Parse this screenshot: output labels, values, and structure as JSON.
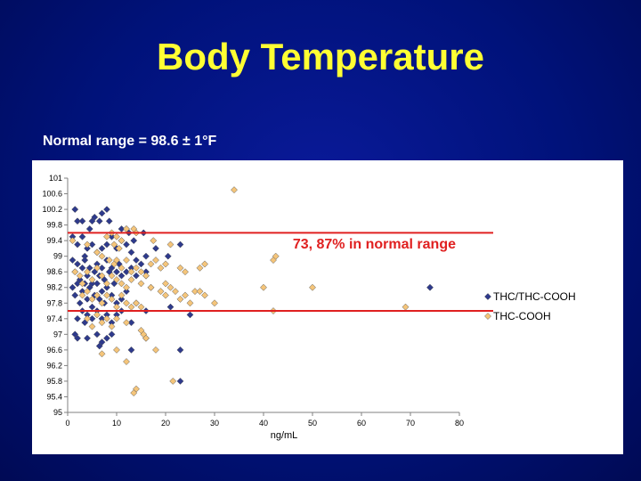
{
  "slide": {
    "title": "Body Temperature",
    "subtitle": "Normal range = 98.6 ± 1°F"
  },
  "colors": {
    "background": "#00127a",
    "title": "#ffff33",
    "series_thc_thccooh": "#2e3a8c",
    "series_thc_cooh": "#f5c57a",
    "normal_range_lines": "#e02020"
  },
  "chart_data": {
    "type": "scatter",
    "title": "",
    "xlabel": "ng/mL",
    "ylabel": "",
    "xlim": [
      0,
      80
    ],
    "ylim": [
      95,
      101
    ],
    "x_ticks": [
      "0",
      "10",
      "20",
      "30",
      "40",
      "50",
      "60",
      "70",
      "80"
    ],
    "y_ticks": [
      "95",
      "95.4",
      "95.8",
      "96.2",
      "96.6",
      "97",
      "97.4",
      "97.8",
      "98.2",
      "98.6",
      "99",
      "99.4",
      "99.8",
      "100.2",
      "100.6",
      "101"
    ],
    "grid": false,
    "legend_position": "right",
    "annotation": "73, 87% in normal range",
    "reference_lines": [
      {
        "y": 97.6,
        "label": ""
      },
      {
        "y": 99.6,
        "label": ""
      }
    ],
    "series": [
      {
        "name": "THC/THC-COOH",
        "marker": "diamond",
        "color": "#2e3a8c",
        "points": [
          [
            1.5,
            100.2
          ],
          [
            2,
            99.9
          ],
          [
            3,
            99.9
          ],
          [
            4.5,
            99.7
          ],
          [
            5,
            99.9
          ],
          [
            5.5,
            100
          ],
          [
            6.5,
            99.9
          ],
          [
            7,
            100.1
          ],
          [
            8,
            100.2
          ],
          [
            8.5,
            99.9
          ],
          [
            11,
            99.7
          ],
          [
            12,
            99.7
          ],
          [
            12.5,
            99.6
          ],
          [
            13.5,
            99.4
          ],
          [
            15.5,
            99.6
          ],
          [
            18,
            99.2
          ],
          [
            20.5,
            99
          ],
          [
            23,
            99.3
          ],
          [
            1,
            99.5
          ],
          [
            2,
            99.3
          ],
          [
            3,
            99.5
          ],
          [
            3.5,
            99
          ],
          [
            4,
            99.2
          ],
          [
            5,
            99.3
          ],
          [
            6,
            99.1
          ],
          [
            7,
            99.2
          ],
          [
            8,
            99.3
          ],
          [
            9,
            99.5
          ],
          [
            10,
            99.2
          ],
          [
            11,
            99.4
          ],
          [
            12,
            99.3
          ],
          [
            13,
            99.1
          ],
          [
            14,
            98.9
          ],
          [
            15,
            98.8
          ],
          [
            16,
            99
          ],
          [
            1,
            98.9
          ],
          [
            1.5,
            98.6
          ],
          [
            2,
            98.8
          ],
          [
            2.5,
            98.4
          ],
          [
            3,
            98.7
          ],
          [
            3.5,
            98.9
          ],
          [
            4,
            98.5
          ],
          [
            4.5,
            98.7
          ],
          [
            5,
            98.3
          ],
          [
            5.5,
            98.6
          ],
          [
            6,
            98.8
          ],
          [
            6.5,
            98.5
          ],
          [
            7,
            98.7
          ],
          [
            7.5,
            98.4
          ],
          [
            8,
            98.9
          ],
          [
            8.5,
            98.6
          ],
          [
            9,
            98.7
          ],
          [
            9.5,
            98.3
          ],
          [
            10,
            98.6
          ],
          [
            10.5,
            98.8
          ],
          [
            11,
            98.5
          ],
          [
            12,
            98.6
          ],
          [
            13,
            98.7
          ],
          [
            14,
            98.5
          ],
          [
            16,
            98.6
          ],
          [
            17,
            98.2
          ],
          [
            1,
            98.2
          ],
          [
            1.5,
            98
          ],
          [
            2,
            98.3
          ],
          [
            2.5,
            97.8
          ],
          [
            3,
            98.1
          ],
          [
            3.5,
            98.3
          ],
          [
            4,
            97.9
          ],
          [
            4.5,
            98.2
          ],
          [
            5,
            97.7
          ],
          [
            5.5,
            98
          ],
          [
            6,
            98.3
          ],
          [
            6.5,
            97.9
          ],
          [
            7,
            98.1
          ],
          [
            7.5,
            97.8
          ],
          [
            8,
            98.2
          ],
          [
            9,
            98
          ],
          [
            10,
            97.8
          ],
          [
            11,
            97.9
          ],
          [
            12,
            98.1
          ],
          [
            14,
            97.8
          ],
          [
            16,
            97.6
          ],
          [
            21,
            97.7
          ],
          [
            2,
            97.4
          ],
          [
            3,
            97.6
          ],
          [
            3.5,
            97.3
          ],
          [
            4,
            97.5
          ],
          [
            5,
            97.4
          ],
          [
            6,
            97.6
          ],
          [
            7,
            97.4
          ],
          [
            8,
            97.5
          ],
          [
            9,
            97.3
          ],
          [
            10,
            97.5
          ],
          [
            11,
            97.6
          ],
          [
            13,
            97.3
          ],
          [
            25,
            97.5
          ],
          [
            74,
            98.2
          ],
          [
            1.5,
            97
          ],
          [
            2,
            96.9
          ],
          [
            4,
            96.9
          ],
          [
            6,
            97
          ],
          [
            6.5,
            96.7
          ],
          [
            7,
            96.8
          ],
          [
            8,
            96.9
          ],
          [
            9,
            97
          ],
          [
            13,
            96.6
          ],
          [
            16,
            96.9
          ],
          [
            23,
            96.6
          ],
          [
            23,
            95.8
          ]
        ]
      },
      {
        "name": "THC-COOH",
        "marker": "diamond",
        "color": "#f5c57a",
        "points": [
          [
            34,
            100.7
          ],
          [
            12,
            99.7
          ],
          [
            13.5,
            99.7
          ],
          [
            14,
            99.6
          ],
          [
            9,
            99.6
          ],
          [
            10,
            99.5
          ],
          [
            11,
            99.4
          ],
          [
            9.5,
            99.3
          ],
          [
            10.5,
            99.2
          ],
          [
            8,
            99.5
          ],
          [
            17.5,
            99.4
          ],
          [
            21,
            99.3
          ],
          [
            1,
            99.4
          ],
          [
            4,
            99.3
          ],
          [
            6,
            99.1
          ],
          [
            7,
            99
          ],
          [
            8.5,
            98.9
          ],
          [
            9.5,
            98.8
          ],
          [
            10,
            98.9
          ],
          [
            11,
            98.7
          ],
          [
            12,
            98.9
          ],
          [
            13,
            98.6
          ],
          [
            14,
            98.7
          ],
          [
            15,
            98.6
          ],
          [
            16,
            98.5
          ],
          [
            17,
            98.8
          ],
          [
            18,
            98.9
          ],
          [
            19,
            98.7
          ],
          [
            20,
            98.8
          ],
          [
            23,
            98.7
          ],
          [
            24,
            98.6
          ],
          [
            28,
            98.8
          ],
          [
            27,
            98.7
          ],
          [
            42,
            98.9
          ],
          [
            42.5,
            99
          ],
          [
            1.5,
            98.6
          ],
          [
            2.5,
            98.5
          ],
          [
            3,
            98.3
          ],
          [
            4,
            98.6
          ],
          [
            5,
            98.4
          ],
          [
            6,
            98.7
          ],
          [
            7,
            98.5
          ],
          [
            8,
            98.3
          ],
          [
            9,
            98.5
          ],
          [
            10,
            98.4
          ],
          [
            11,
            98.3
          ],
          [
            12,
            98.2
          ],
          [
            13,
            98.4
          ],
          [
            15,
            98.3
          ],
          [
            16,
            98.5
          ],
          [
            17,
            98.2
          ],
          [
            20,
            98.3
          ],
          [
            21,
            98.2
          ],
          [
            3,
            98
          ],
          [
            4,
            98.1
          ],
          [
            5,
            97.9
          ],
          [
            6,
            98
          ],
          [
            7,
            97.8
          ],
          [
            8,
            98
          ],
          [
            9,
            97.9
          ],
          [
            10,
            97.7
          ],
          [
            11,
            98
          ],
          [
            12,
            97.8
          ],
          [
            13,
            97.7
          ],
          [
            14,
            97.8
          ],
          [
            15,
            97.7
          ],
          [
            19,
            98.1
          ],
          [
            20,
            98
          ],
          [
            22,
            98.1
          ],
          [
            23,
            97.9
          ],
          [
            24,
            98
          ],
          [
            25,
            97.8
          ],
          [
            26,
            98.1
          ],
          [
            27,
            98.1
          ],
          [
            28,
            98
          ],
          [
            30,
            97.8
          ],
          [
            40,
            98.2
          ],
          [
            50,
            98.2
          ],
          [
            42,
            97.6
          ],
          [
            69,
            97.7
          ],
          [
            4,
            97.4
          ],
          [
            5,
            97.2
          ],
          [
            6,
            97.5
          ],
          [
            7,
            97.3
          ],
          [
            8,
            97.4
          ],
          [
            9,
            97.2
          ],
          [
            10,
            97.4
          ],
          [
            12,
            97.3
          ],
          [
            15,
            97.1
          ],
          [
            15.5,
            97
          ],
          [
            16,
            96.9
          ],
          [
            7,
            96.5
          ],
          [
            10,
            96.6
          ],
          [
            12,
            96.3
          ],
          [
            14,
            95.6
          ],
          [
            13.5,
            95.5
          ],
          [
            18,
            96.6
          ],
          [
            21.5,
            95.8
          ]
        ]
      }
    ]
  }
}
